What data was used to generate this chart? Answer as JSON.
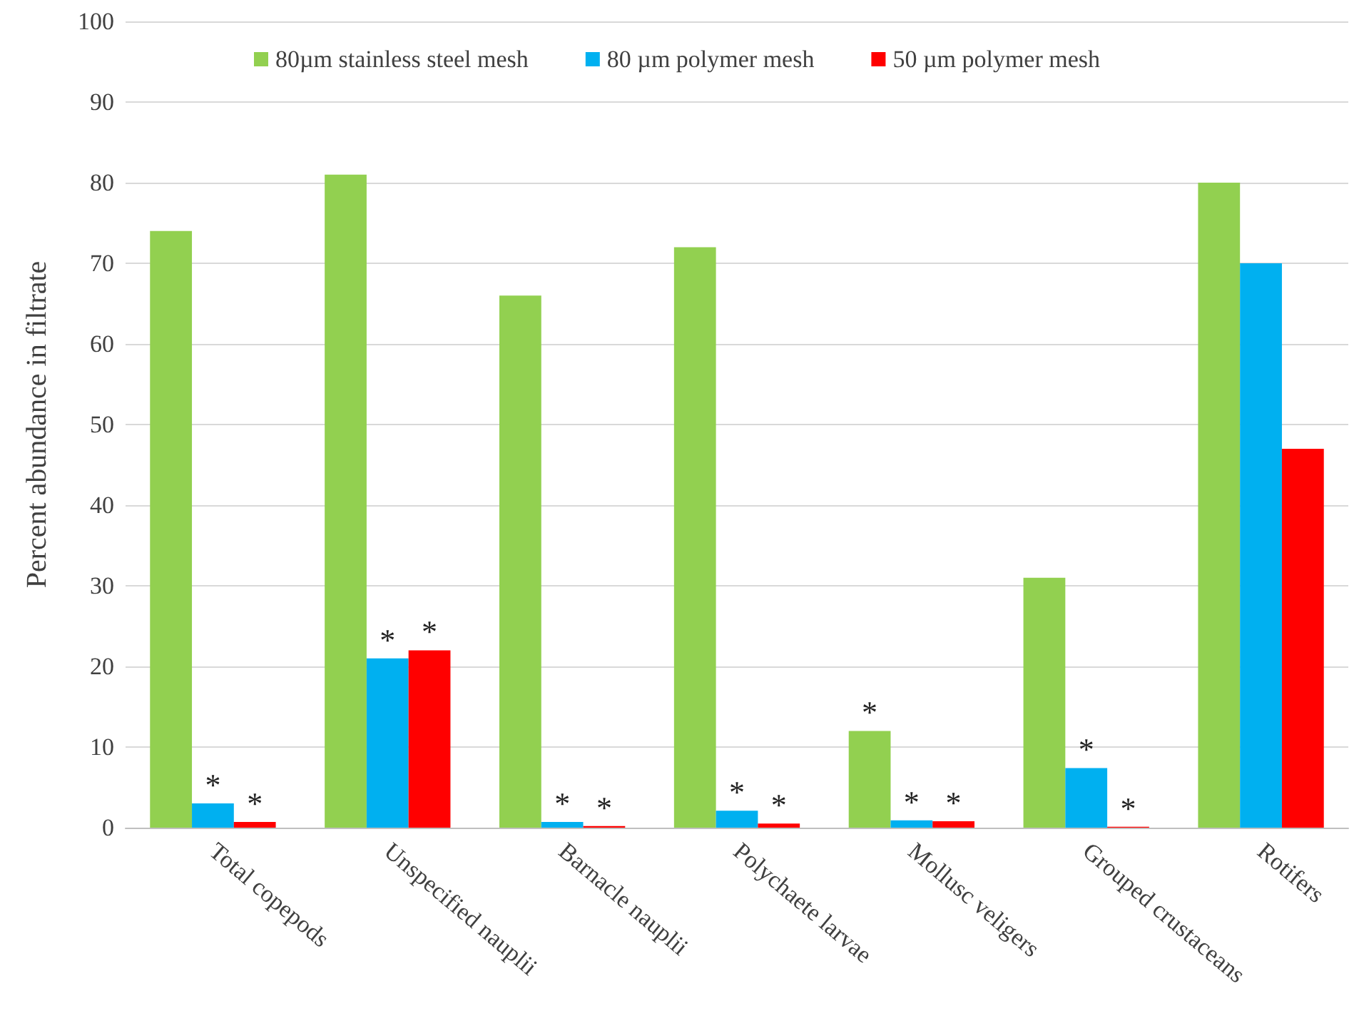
{
  "chart_data": {
    "type": "bar",
    "ylabel": "Percent abundance in filtrate",
    "categories": [
      "Total copepods",
      "Unspecified nauplii",
      "Barnacle nauplii",
      "Polychaete larvae",
      "Mollusc veligers",
      "Grouped crustaceans",
      "Rotifers"
    ],
    "series": [
      {
        "name": "80µm stainless steel mesh",
        "color": "#92d050",
        "values": [
          74,
          81,
          66,
          72,
          12,
          31,
          80
        ],
        "value_labels": [
          null,
          null,
          null,
          null,
          "*",
          null,
          null
        ]
      },
      {
        "name": "80 µm polymer mesh",
        "color": "#00b0f0",
        "values": [
          3,
          21,
          0.7,
          2.1,
          0.9,
          7.4,
          70
        ],
        "value_labels": [
          "*",
          "*",
          "*",
          "*",
          "*",
          "*",
          null
        ]
      },
      {
        "name": "50 µm polymer mesh",
        "color": "#ff0000",
        "values": [
          0.7,
          22,
          0.2,
          0.5,
          0.8,
          0.1,
          47
        ],
        "value_labels": [
          "*",
          "*",
          "*",
          "*",
          "*",
          "*",
          null
        ]
      }
    ],
    "ylim": [
      0,
      100
    ],
    "yticks": [
      0,
      10,
      20,
      30,
      40,
      50,
      60,
      70,
      80,
      90,
      100
    ],
    "grid": "y",
    "legend": "top"
  }
}
